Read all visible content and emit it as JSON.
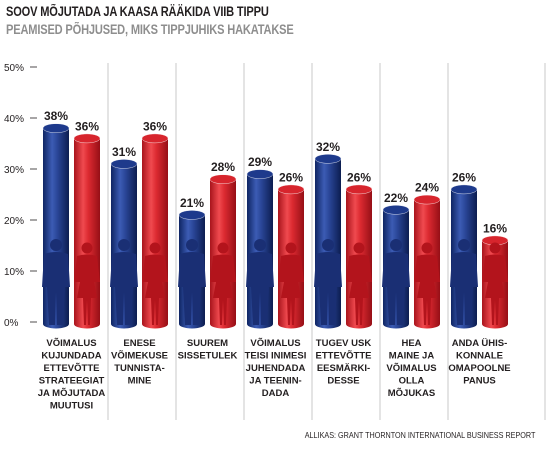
{
  "title": "SOOV MÕJUTADA JA KAASA RÄÄKIDA VIIB TIPPU",
  "subtitle": "PEAMISED PÕHJUSED, MIKS TIPPJUHIKS HAKATAKSE",
  "source": "ALLIKAS: GRANT THORNTON INTERNATIONAL BUSINESS REPORT",
  "colors": {
    "male_bar": "#1e3a8c",
    "female_bar": "#d7252d"
  },
  "chart_data": {
    "type": "bar",
    "categories": [
      [
        "VÕIMALUS",
        "KUJUNDADA",
        "ETTEVÕTTE",
        "STRATEEGIAT",
        "JA MÕJUTADA",
        "MUUTUSI"
      ],
      [
        "ENESE",
        "VÕIMEKUSE",
        "TUNNISTA-",
        "MINE"
      ],
      [
        "SUUREM",
        "SISSETULEK"
      ],
      [
        "VÕIMALUS",
        "TEISI INIMESI",
        "JUHENDADA",
        "JA TEENIN-",
        "DADA"
      ],
      [
        "TUGEV USK",
        "ETTEVÕTTE",
        "EESMÄRKI-",
        "DESSE"
      ],
      [
        "HEA",
        "MAINE JA",
        "VÕIMALUS",
        "OLLA",
        "MÕJUKAS"
      ],
      [
        "ANDA ÜHIS-",
        "KONNALE",
        "OMAPOOLNE",
        "PANUS"
      ]
    ],
    "series": [
      {
        "values": [
          38,
          31,
          21,
          29,
          32,
          22,
          26
        ],
        "labels": [
          "38%",
          "31%",
          "21%",
          "29%",
          "32%",
          "22%",
          "26%"
        ],
        "icon": "man-silhouette-icon"
      },
      {
        "values": [
          36,
          36,
          28,
          26,
          26,
          24,
          16
        ],
        "labels": [
          "36%",
          "36%",
          "28%",
          "26%",
          "26%",
          "24%",
          "16%"
        ],
        "icon": "woman-silhouette-icon"
      }
    ],
    "yticks": [
      "0%",
      "10%",
      "20%",
      "30%",
      "40%",
      "50%"
    ],
    "ylim": [
      0,
      50
    ],
    "grid": false,
    "legend": "none"
  }
}
